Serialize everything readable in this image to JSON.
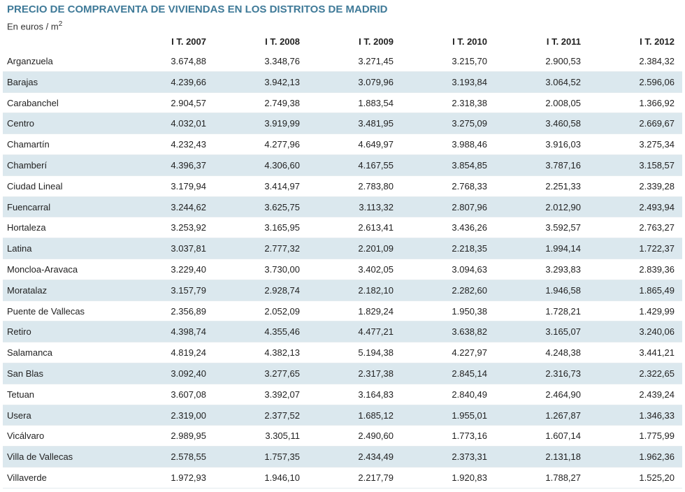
{
  "header": {
    "title": "PRECIO DE COMPRAVENTA DE VIVIENDAS EN LOS DISTRITOS DE MADRID",
    "subtitle": {
      "text": "En euros / m",
      "sup": "2"
    }
  },
  "table": {
    "columns": [
      "I T. 2007",
      "I T. 2008",
      "I T. 2009",
      "I T. 2010",
      "I T. 2011",
      "I T. 2012"
    ],
    "rows": [
      [
        "Arganzuela",
        "3.674,88",
        "3.348,76",
        "3.271,45",
        "3.215,70",
        "2.900,53",
        "2.384,32"
      ],
      [
        "Barajas",
        "4.239,66",
        "3.942,13",
        "3.079,96",
        "3.193,84",
        "3.064,52",
        "2.596,06"
      ],
      [
        "Carabanchel",
        "2.904,57",
        "2.749,38",
        "1.883,54",
        "2.318,38",
        "2.008,05",
        "1.366,92"
      ],
      [
        "Centro",
        "4.032,01",
        "3.919,99",
        "3.481,95",
        "3.275,09",
        "3.460,58",
        "2.669,67"
      ],
      [
        "Chamartín",
        "4.232,43",
        "4.277,96",
        "4.649,97",
        "3.988,46",
        "3.916,03",
        "3.275,34"
      ],
      [
        "Chamberí",
        "4.396,37",
        "4.306,60",
        "4.167,55",
        "3.854,85",
        "3.787,16",
        "3.158,57"
      ],
      [
        "Ciudad Lineal",
        "3.179,94",
        "3.414,97",
        "2.783,80",
        "2.768,33",
        "2.251,33",
        "2.339,28"
      ],
      [
        "Fuencarral",
        "3.244,62",
        "3.625,75",
        "3.113,32",
        "2.807,96",
        "2.012,90",
        "2.493,94"
      ],
      [
        "Hortaleza",
        "3.253,92",
        "3.165,95",
        "2.613,41",
        "3.436,26",
        "3.592,57",
        "2.763,27"
      ],
      [
        "Latina",
        "3.037,81",
        "2.777,32",
        "2.201,09",
        "2.218,35",
        "1.994,14",
        "1.722,37"
      ],
      [
        "Moncloa-Aravaca",
        "3.229,40",
        "3.730,00",
        "3.402,05",
        "3.094,63",
        "3.293,83",
        "2.839,36"
      ],
      [
        "Moratalaz",
        "3.157,79",
        "2.928,74",
        "2.182,10",
        "2.282,60",
        "1.946,58",
        "1.865,49"
      ],
      [
        "Puente de Vallecas",
        "2.356,89",
        "2.052,09",
        "1.829,24",
        "1.950,38",
        "1.728,21",
        "1.429,99"
      ],
      [
        "Retiro",
        "4.398,74",
        "4.355,46",
        "4.477,21",
        "3.638,82",
        "3.165,07",
        "3.240,06"
      ],
      [
        "Salamanca",
        "4.819,24",
        "4.382,13",
        "5.194,38",
        "4.227,97",
        "4.248,38",
        "3.441,21"
      ],
      [
        "San Blas",
        "3.092,40",
        "3.277,65",
        "2.317,38",
        "2.845,14",
        "2.316,73",
        "2.322,65"
      ],
      [
        "Tetuan",
        "3.607,08",
        "3.392,07",
        "3.164,83",
        "2.840,49",
        "2.464,90",
        "2.439,24"
      ],
      [
        "Usera",
        "2.319,00",
        "2.377,52",
        "1.685,12",
        "1.955,01",
        "1.267,87",
        "1.346,33"
      ],
      [
        "Vicálvaro",
        "2.989,95",
        "3.305,11",
        "2.490,60",
        "1.773,16",
        "1.607,14",
        "1.775,99"
      ],
      [
        "Villa de Vallecas",
        "2.578,55",
        "1.757,35",
        "2.434,49",
        "2.373,31",
        "2.131,18",
        "1.962,36"
      ],
      [
        "Villaverde",
        "1.972,93",
        "1.946,10",
        "2.217,79",
        "1.920,83",
        "1.788,27",
        "1.525,20"
      ]
    ]
  }
}
